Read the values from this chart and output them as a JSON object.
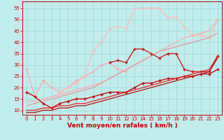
{
  "title": "",
  "xlabel": "Vent moyen/en rafales ( km/h )",
  "ylabel": "",
  "xlim": [
    -0.5,
    23.5
  ],
  "ylim": [
    8,
    58
  ],
  "yticks": [
    10,
    15,
    20,
    25,
    30,
    35,
    40,
    45,
    50,
    55
  ],
  "xticks": [
    0,
    1,
    2,
    3,
    4,
    5,
    6,
    7,
    8,
    9,
    10,
    11,
    12,
    13,
    14,
    15,
    16,
    17,
    18,
    19,
    20,
    21,
    22,
    23
  ],
  "background_color": "#c0ecec",
  "grid_color": "#a0d8d8",
  "series": [
    {
      "x": [
        0,
        1,
        2,
        3,
        4,
        5,
        6,
        7,
        8,
        9,
        10,
        11,
        12
      ],
      "y": [
        28,
        16,
        23,
        20,
        18,
        20,
        23,
        25,
        27,
        30,
        31,
        28,
        27
      ],
      "color": "#ffaaaa",
      "lw": 0.9,
      "marker": "D",
      "ms": 1.8
    },
    {
      "x": [
        2,
        3,
        4,
        5,
        6,
        7,
        8,
        9,
        10,
        11,
        12,
        13,
        14,
        15,
        16,
        17,
        18,
        19,
        20,
        21,
        22,
        23
      ],
      "y": [
        11,
        11,
        18,
        20,
        22,
        25,
        36,
        40,
        46,
        47,
        46,
        55,
        55,
        55,
        55,
        51,
        51,
        47,
        43,
        43,
        42,
        50
      ],
      "color": "#ffbbbb",
      "lw": 0.9,
      "marker": "D",
      "ms": 1.8
    },
    {
      "x": [
        0,
        1,
        2,
        3,
        4,
        5,
        6,
        7,
        8,
        9,
        10,
        11,
        12,
        13,
        14,
        15,
        16,
        17,
        18,
        19,
        20,
        21,
        22,
        23
      ],
      "y": [
        14,
        14,
        15,
        16,
        17,
        18,
        19,
        20,
        21,
        22,
        24,
        26,
        28,
        30,
        32,
        34,
        36,
        38,
        40,
        42,
        43,
        44,
        45,
        50
      ],
      "color": "#ffaaaa",
      "lw": 0.9,
      "marker": null,
      "ms": 0
    },
    {
      "x": [
        0,
        1,
        2,
        3,
        4,
        5,
        6,
        7,
        8,
        9,
        10,
        11,
        12,
        13,
        14,
        15,
        16,
        17,
        18,
        19,
        20,
        21,
        22,
        23
      ],
      "y": [
        12,
        13,
        14,
        15,
        16,
        17,
        18,
        19,
        20,
        22,
        24,
        26,
        28,
        30,
        32,
        34,
        36,
        37,
        38,
        39,
        40,
        41,
        42,
        44
      ],
      "color": "#ee9999",
      "lw": 0.9,
      "marker": null,
      "ms": 0
    },
    {
      "x": [
        10,
        11,
        12,
        13,
        14,
        15,
        16,
        17,
        18,
        19,
        20,
        21,
        22,
        23
      ],
      "y": [
        31,
        32,
        31,
        37,
        37,
        35,
        33,
        35,
        35,
        28,
        27,
        27,
        27,
        34
      ],
      "color": "#cc2222",
      "lw": 1.0,
      "marker": "D",
      "ms": 2.0
    },
    {
      "x": [
        0,
        1,
        2,
        3,
        4,
        5,
        6,
        7,
        8,
        9,
        10,
        11,
        12,
        13,
        14,
        15,
        16,
        17,
        18,
        19,
        20,
        21,
        22,
        23
      ],
      "y": [
        18,
        16,
        13,
        11,
        13,
        14,
        15,
        15,
        16,
        17,
        18,
        18,
        18,
        20,
        22,
        22,
        23,
        24,
        24,
        25,
        25,
        26,
        26,
        28
      ],
      "color": "#cc1111",
      "lw": 1.0,
      "marker": "D",
      "ms": 2.0
    },
    {
      "x": [
        0,
        1,
        2,
        3,
        4,
        5,
        6,
        7,
        8,
        9,
        10,
        11,
        12,
        13,
        14,
        15,
        16,
        17,
        18,
        19,
        20,
        21,
        22,
        23
      ],
      "y": [
        10,
        10,
        11,
        11,
        12,
        12,
        13,
        13,
        14,
        15,
        16,
        17,
        18,
        19,
        20,
        21,
        22,
        23,
        24,
        25,
        26,
        27,
        28,
        34
      ],
      "color": "#ee2222",
      "lw": 0.9,
      "marker": null,
      "ms": 0
    },
    {
      "x": [
        0,
        1,
        2,
        3,
        4,
        5,
        6,
        7,
        8,
        9,
        10,
        11,
        12,
        13,
        14,
        15,
        16,
        17,
        18,
        19,
        20,
        21,
        22,
        23
      ],
      "y": [
        9,
        9,
        10,
        10,
        11,
        11,
        12,
        12,
        13,
        14,
        15,
        16,
        17,
        18,
        19,
        20,
        21,
        22,
        23,
        24,
        25,
        26,
        27,
        33
      ],
      "color": "#bb1111",
      "lw": 0.9,
      "marker": null,
      "ms": 0
    }
  ],
  "tick_color": "#cc0000",
  "label_color": "#cc0000",
  "tick_fontsize": 5.0,
  "label_fontsize": 6.5
}
